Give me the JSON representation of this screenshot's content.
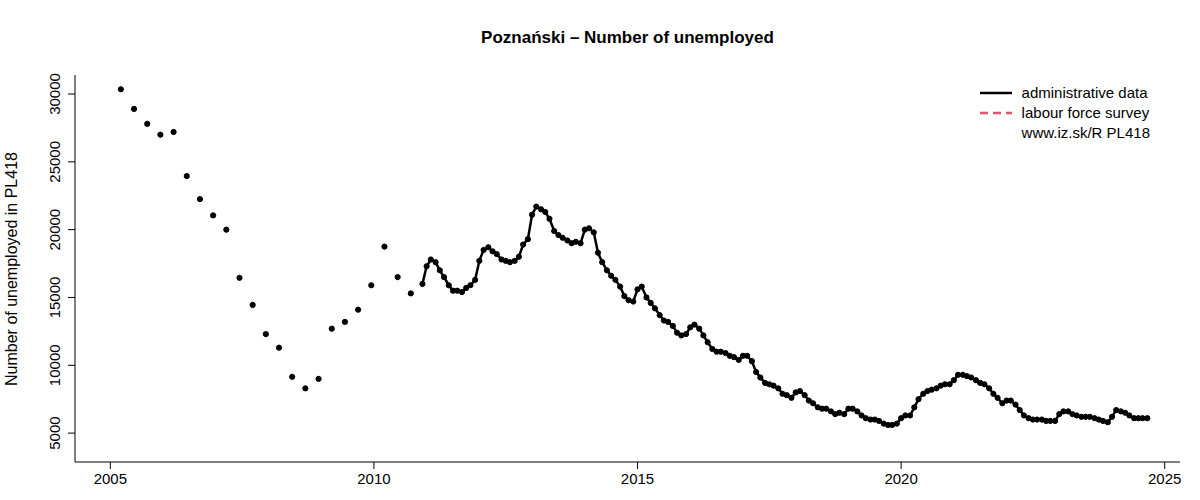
{
  "chart_data": {
    "type": "line",
    "title": "Poznański – Number of unemployed",
    "y_label": "Number of unemployed in PL418",
    "source": "www.iz.sk/R PL418",
    "legend": "top-right",
    "grid": false,
    "xlim": [
      2004.33,
      2025.29
    ],
    "xticks": [
      2005,
      2010,
      2015,
      2020,
      2025
    ],
    "ylim": [
      2870,
      31400
    ],
    "yticks": [
      5000,
      10000,
      15000,
      20000,
      25000,
      30000
    ],
    "series": [
      {
        "name": "administrative data",
        "color": "#000000",
        "line_style": "solid",
        "marker": "circle",
        "x": [
          2005.2,
          2005.32,
          2005.45,
          2005.57,
          2005.7,
          2005.82,
          2005.95,
          2006.07,
          2006.2,
          2006.32,
          2006.45,
          2006.57,
          2006.7,
          2006.82,
          2006.95,
          2007.07,
          2007.2,
          2007.32,
          2007.45,
          2007.57,
          2007.7,
          2007.82,
          2007.95,
          2008.07,
          2008.2,
          2008.32,
          2008.45,
          2008.57,
          2008.7,
          2008.82,
          2008.95,
          2009.07,
          2009.2,
          2009.32,
          2009.45,
          2009.57,
          2009.7,
          2009.82,
          2009.95,
          2010.07,
          2010.2,
          2010.32,
          2010.45,
          2010.57,
          2010.7,
          2010.82,
          2010.92,
          2011,
          2011.08,
          2011.17,
          2011.25,
          2011.33,
          2011.42,
          2011.5,
          2011.58,
          2011.67,
          2011.75,
          2011.83,
          2011.92,
          2012,
          2012.08,
          2012.17,
          2012.25,
          2012.33,
          2012.42,
          2012.5,
          2012.58,
          2012.67,
          2012.75,
          2012.83,
          2012.92,
          2013,
          2013.08,
          2013.17,
          2013.25,
          2013.33,
          2013.42,
          2013.5,
          2013.58,
          2013.67,
          2013.75,
          2013.83,
          2013.92,
          2014,
          2014.08,
          2014.17,
          2014.25,
          2014.33,
          2014.42,
          2014.5,
          2014.58,
          2014.67,
          2014.75,
          2014.83,
          2014.92,
          2015,
          2015.08,
          2015.17,
          2015.25,
          2015.33,
          2015.42,
          2015.5,
          2015.58,
          2015.67,
          2015.75,
          2015.83,
          2015.92,
          2016,
          2016.08,
          2016.17,
          2016.25,
          2016.33,
          2016.42,
          2016.5,
          2016.58,
          2016.67,
          2016.75,
          2016.83,
          2016.92,
          2017,
          2017.08,
          2017.17,
          2017.25,
          2017.33,
          2017.42,
          2017.5,
          2017.58,
          2017.67,
          2017.75,
          2017.83,
          2017.92,
          2018,
          2018.08,
          2018.17,
          2018.25,
          2018.33,
          2018.42,
          2018.5,
          2018.58,
          2018.67,
          2018.75,
          2018.83,
          2018.92,
          2019,
          2019.08,
          2019.17,
          2019.25,
          2019.33,
          2019.42,
          2019.5,
          2019.58,
          2019.67,
          2019.75,
          2019.83,
          2019.92,
          2020,
          2020.08,
          2020.17,
          2020.25,
          2020.33,
          2020.42,
          2020.5,
          2020.58,
          2020.67,
          2020.75,
          2020.83,
          2020.92,
          2021,
          2021.08,
          2021.17,
          2021.25,
          2021.33,
          2021.42,
          2021.5,
          2021.58,
          2021.67,
          2021.75,
          2021.83,
          2021.92,
          2022,
          2022.08,
          2022.17,
          2022.25,
          2022.33,
          2022.42,
          2022.5,
          2022.58,
          2022.67,
          2022.75,
          2022.83,
          2022.92,
          2023,
          2023.08,
          2023.17,
          2023.25,
          2023.33,
          2023.42,
          2023.5,
          2023.58,
          2023.67,
          2023.75,
          2023.83,
          2023.92,
          2024,
          2024.08,
          2024.17,
          2024.25,
          2024.33,
          2024.42,
          2024.5,
          2024.58,
          2024.67
        ],
        "values": [
          30350,
          null,
          28900,
          null,
          27800,
          null,
          27000,
          null,
          27200,
          null,
          23950,
          null,
          22250,
          null,
          21050,
          null,
          20000,
          null,
          16450,
          null,
          14450,
          null,
          12300,
          null,
          11300,
          null,
          9150,
          null,
          8300,
          null,
          9000,
          null,
          12700,
          null,
          13200,
          null,
          14100,
          null,
          15900,
          null,
          18750,
          null,
          16500,
          null,
          15300,
          null,
          16000,
          17300,
          17800,
          17600,
          17000,
          16500,
          15900,
          15500,
          15500,
          15400,
          15700,
          15900,
          16300,
          17700,
          18500,
          18700,
          18400,
          18200,
          17800,
          17700,
          17600,
          17700,
          18000,
          18900,
          19300,
          21100,
          21700,
          21500,
          21300,
          20800,
          19900,
          19600,
          19400,
          19200,
          19000,
          19100,
          19000,
          20000,
          20100,
          19800,
          18300,
          17600,
          17000,
          16600,
          16300,
          15800,
          15100,
          14800,
          14700,
          15600,
          15800,
          15000,
          14600,
          14200,
          13700,
          13300,
          13200,
          12900,
          12400,
          12200,
          12300,
          12800,
          13000,
          12700,
          12200,
          11700,
          11200,
          11000,
          11000,
          10900,
          10700,
          10600,
          10400,
          10700,
          10700,
          10300,
          9500,
          9100,
          8700,
          8600,
          8500,
          8300,
          7900,
          7800,
          7600,
          8000,
          8100,
          7800,
          7400,
          7200,
          6900,
          6800,
          6800,
          6600,
          6400,
          6500,
          6400,
          6800,
          6800,
          6600,
          6300,
          6100,
          6000,
          6000,
          5900,
          5700,
          5600,
          5600,
          5700,
          6100,
          6300,
          6300,
          6900,
          7500,
          7900,
          8100,
          8200,
          8300,
          8500,
          8600,
          8600,
          8900,
          9300,
          9300,
          9200,
          9100,
          8900,
          8700,
          8600,
          8300,
          7900,
          7600,
          7200,
          7400,
          7400,
          7100,
          6700,
          6300,
          6100,
          6000,
          6000,
          6000,
          5900,
          5900,
          5900,
          6400,
          6600,
          6600,
          6400,
          6300,
          6200,
          6200,
          6200,
          6100,
          6000,
          5900,
          5800,
          6200,
          6700,
          6600,
          6500,
          6300,
          6100,
          6100,
          6100,
          6100
        ]
      },
      {
        "name": "labour force survey",
        "color": "#df536b",
        "line_style": "dashed",
        "marker": "none",
        "x": [],
        "values": []
      }
    ]
  }
}
